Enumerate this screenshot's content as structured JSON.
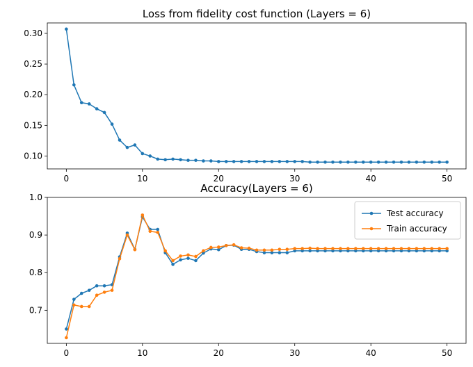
{
  "colors": {
    "blue": "#1f77b4",
    "orange": "#ff7f0e"
  },
  "chart_data": [
    {
      "type": "line",
      "title": "Loss from fidelity cost function (Layers = 6)",
      "xlabel": "",
      "ylabel": "",
      "xlim": [
        -2.5,
        52.5
      ],
      "ylim": [
        0.079,
        0.317
      ],
      "xticks": [
        0,
        10,
        20,
        30,
        40,
        50
      ],
      "yticks": [
        0.1,
        0.15,
        0.2,
        0.25,
        0.3
      ],
      "ytick_labels": [
        "0.10",
        "0.15",
        "0.20",
        "0.25",
        "0.30"
      ],
      "legend": null,
      "x": [
        0,
        1,
        2,
        3,
        4,
        5,
        6,
        7,
        8,
        9,
        10,
        11,
        12,
        13,
        14,
        15,
        16,
        17,
        18,
        19,
        20,
        21,
        22,
        23,
        24,
        25,
        26,
        27,
        28,
        29,
        30,
        31,
        32,
        33,
        34,
        35,
        36,
        37,
        38,
        39,
        40,
        41,
        42,
        43,
        44,
        45,
        46,
        47,
        48,
        49,
        50
      ],
      "series": [
        {
          "color": "#1f77b4",
          "values": [
            0.307,
            0.216,
            0.187,
            0.185,
            0.177,
            0.171,
            0.152,
            0.126,
            0.114,
            0.118,
            0.104,
            0.1,
            0.095,
            0.094,
            0.095,
            0.094,
            0.093,
            0.093,
            0.092,
            0.092,
            0.091,
            0.091,
            0.091,
            0.091,
            0.091,
            0.091,
            0.091,
            0.091,
            0.091,
            0.091,
            0.091,
            0.091,
            0.09,
            0.09,
            0.09,
            0.09,
            0.09,
            0.09,
            0.09,
            0.09,
            0.09,
            0.09,
            0.09,
            0.09,
            0.09,
            0.09,
            0.09,
            0.09,
            0.09,
            0.09,
            0.09
          ]
        }
      ]
    },
    {
      "type": "line",
      "title": "Accuracy(Layers = 6)",
      "xlabel": "",
      "ylabel": "",
      "xlim": [
        -2.5,
        52.5
      ],
      "ylim": [
        0.612,
        1.0
      ],
      "xticks": [
        0,
        10,
        20,
        30,
        40,
        50
      ],
      "yticks": [
        0.7,
        0.8,
        0.9,
        1.0
      ],
      "ytick_labels": [
        "0.7",
        "0.8",
        "0.9",
        "1.0"
      ],
      "legend": "top-right",
      "x": [
        0,
        1,
        2,
        3,
        4,
        5,
        6,
        7,
        8,
        9,
        10,
        11,
        12,
        13,
        14,
        15,
        16,
        17,
        18,
        19,
        20,
        21,
        22,
        23,
        24,
        25,
        26,
        27,
        28,
        29,
        30,
        31,
        32,
        33,
        34,
        35,
        36,
        37,
        38,
        39,
        40,
        41,
        42,
        43,
        44,
        45,
        46,
        47,
        48,
        49,
        50
      ],
      "series": [
        {
          "name": "Test accuracy",
          "color": "#1f77b4",
          "values": [
            0.65,
            0.729,
            0.745,
            0.753,
            0.765,
            0.765,
            0.768,
            0.842,
            0.905,
            0.862,
            0.948,
            0.915,
            0.915,
            0.853,
            0.822,
            0.834,
            0.838,
            0.832,
            0.852,
            0.863,
            0.861,
            0.872,
            0.873,
            0.862,
            0.862,
            0.856,
            0.853,
            0.853,
            0.853,
            0.853,
            0.858,
            0.858,
            0.858,
            0.858,
            0.858,
            0.858,
            0.858,
            0.858,
            0.858,
            0.858,
            0.858,
            0.858,
            0.858,
            0.858,
            0.858,
            0.858,
            0.858,
            0.858,
            0.858,
            0.858,
            0.858
          ]
        },
        {
          "name": "Train accuracy",
          "color": "#ff7f0e",
          "values": [
            0.627,
            0.714,
            0.71,
            0.71,
            0.74,
            0.748,
            0.753,
            0.837,
            0.9,
            0.861,
            0.953,
            0.91,
            0.907,
            0.858,
            0.832,
            0.844,
            0.847,
            0.843,
            0.858,
            0.867,
            0.868,
            0.872,
            0.874,
            0.866,
            0.865,
            0.86,
            0.86,
            0.86,
            0.862,
            0.862,
            0.864,
            0.864,
            0.865,
            0.864,
            0.864,
            0.864,
            0.864,
            0.864,
            0.864,
            0.864,
            0.864,
            0.864,
            0.864,
            0.864,
            0.864,
            0.864,
            0.864,
            0.864,
            0.864,
            0.864,
            0.864
          ]
        }
      ]
    }
  ]
}
